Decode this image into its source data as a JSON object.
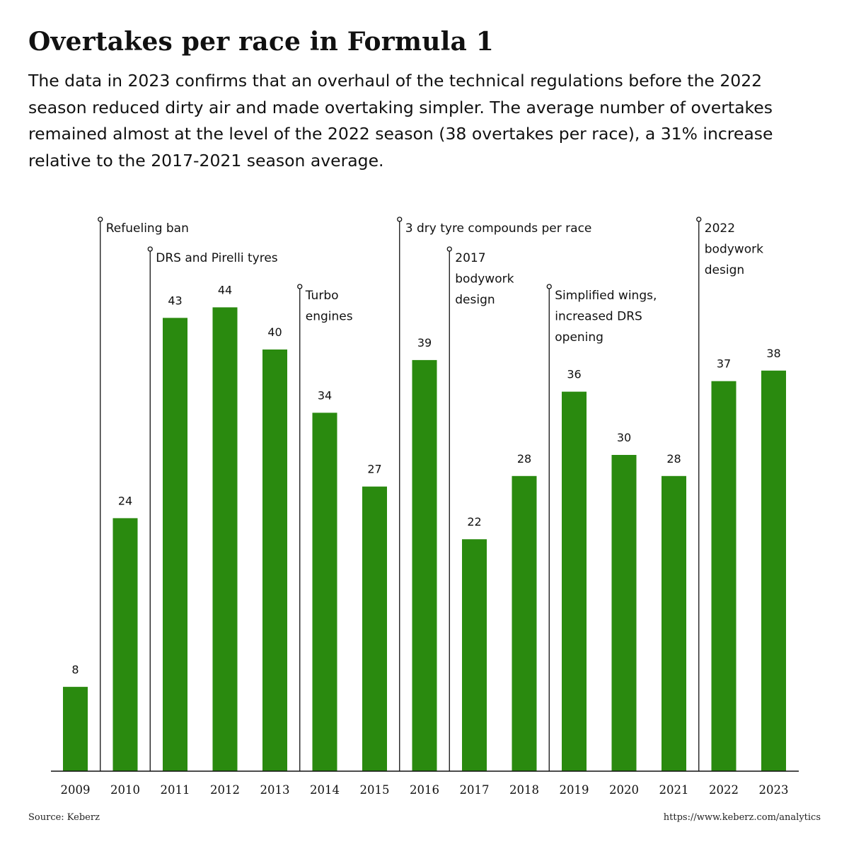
{
  "title": "Overtakes per race in Formula 1",
  "subtitle": "The data in 2023 confirms that an overhaul of the technical regulations before the 2022 season reduced dirty air and made overtaking simpler. The average number of overtakes remained almost at the level of the 2022 season (38 overtakes per race), a 31% increase relative to the 2017-2021 season average.",
  "source": "Source: Keberz",
  "url": "https://www.keberz.com/analytics",
  "colors": {
    "bar": "#2a8a0f",
    "axis": "#111111"
  },
  "chart_data": {
    "type": "bar",
    "categories": [
      "2009",
      "2010",
      "2011",
      "2012",
      "2013",
      "2014",
      "2015",
      "2016",
      "2017",
      "2018",
      "2019",
      "2020",
      "2021",
      "2022",
      "2023"
    ],
    "values": [
      8,
      24,
      43,
      44,
      40,
      34,
      27,
      39,
      22,
      28,
      36,
      30,
      28,
      37,
      38
    ],
    "ylim": [
      0,
      50
    ],
    "grid": false,
    "annotations": [
      {
        "after": "2009",
        "lines": [
          "Refueling ban"
        ]
      },
      {
        "after": "2010",
        "lines": [
          "DRS and Pirelli tyres"
        ]
      },
      {
        "after": "2013",
        "lines": [
          "Turbo",
          "engines"
        ]
      },
      {
        "after": "2015",
        "lines": [
          "3 dry tyre compounds per race"
        ]
      },
      {
        "after": "2016",
        "lines": [
          "2017",
          "bodywork",
          "design"
        ]
      },
      {
        "after": "2018",
        "lines": [
          "Simplified wings,",
          "increased DRS",
          "opening"
        ]
      },
      {
        "after": "2021",
        "lines": [
          "2022",
          "bodywork",
          "design"
        ]
      }
    ]
  }
}
